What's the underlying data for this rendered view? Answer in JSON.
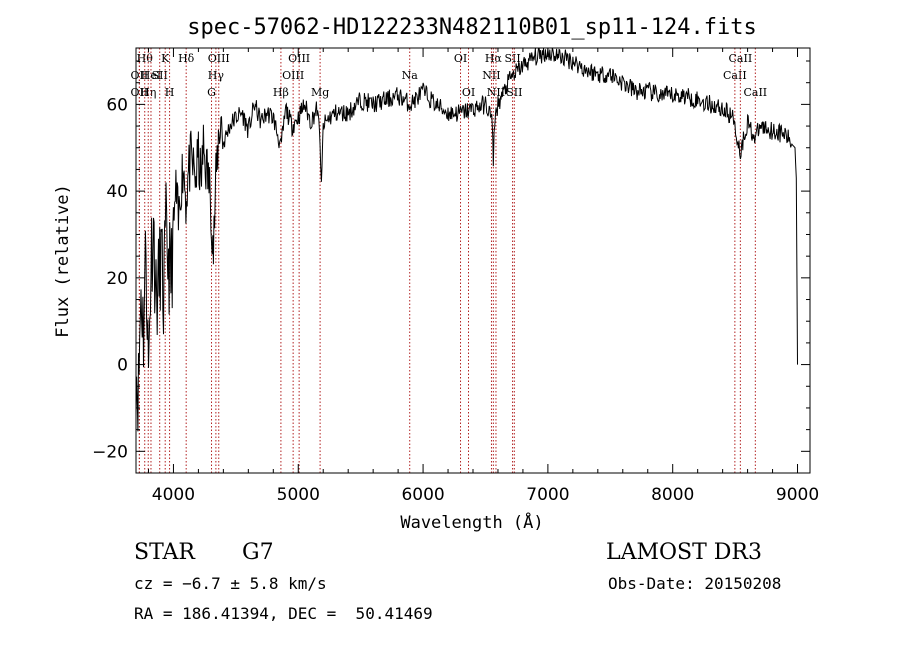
{
  "chart_data": {
    "type": "line",
    "title": "spec-57062-HD122233N482110B01_sp11-124.fits",
    "xlabel": "Wavelength (Å)",
    "ylabel": "Flux (relative)",
    "xlim": [
      3700,
      9100
    ],
    "ylim": [
      -25,
      73
    ],
    "x_ticks": [
      4000,
      5000,
      6000,
      7000,
      8000,
      9000
    ],
    "x_tick_labels": [
      "4000",
      "5000",
      "6000",
      "7000",
      "8000",
      "9000"
    ],
    "y_ticks": [
      -20,
      0,
      20,
      40,
      60
    ],
    "y_tick_labels": [
      "−20",
      "0",
      "20",
      "40",
      "60"
    ],
    "grid": false,
    "series": [
      {
        "name": "spectrum",
        "color": "#000000",
        "x": [
          3700,
          3720,
          3740,
          3760,
          3780,
          3800,
          3820,
          3840,
          3860,
          3880,
          3900,
          3920,
          3940,
          3960,
          3980,
          4000,
          4020,
          4040,
          4060,
          4080,
          4100,
          4120,
          4140,
          4160,
          4180,
          4200,
          4220,
          4240,
          4260,
          4280,
          4300,
          4320,
          4340,
          4360,
          4380,
          4400,
          4450,
          4500,
          4550,
          4600,
          4650,
          4700,
          4750,
          4800,
          4861,
          4900,
          4950,
          5000,
          5050,
          5100,
          5150,
          5175,
          5185,
          5200,
          5250,
          5300,
          5400,
          5500,
          5600,
          5700,
          5800,
          5900,
          6000,
          6100,
          6200,
          6300,
          6400,
          6500,
          6550,
          6563,
          6575,
          6600,
          6700,
          6800,
          6900,
          7000,
          7100,
          7200,
          7300,
          7400,
          7500,
          7600,
          7700,
          7800,
          7900,
          8000,
          8100,
          8200,
          8300,
          8400,
          8480,
          8498,
          8510,
          8542,
          8600,
          8662,
          8700,
          8800,
          8900,
          8950,
          8980,
          8990,
          9000
        ],
        "y": [
          0,
          -6,
          18,
          8,
          28,
          -3,
          25,
          32,
          15,
          18,
          26,
          15,
          30,
          24,
          20,
          30,
          40,
          32,
          42,
          46,
          38,
          44,
          47,
          45,
          43,
          48,
          42,
          50,
          46,
          43,
          38,
          26,
          42,
          52,
          57,
          51,
          55,
          57,
          58,
          54,
          60,
          56,
          58,
          57,
          50,
          59,
          55,
          57,
          60,
          56,
          59,
          52,
          40,
          55,
          57,
          58,
          58,
          61,
          60,
          61,
          62,
          60,
          63,
          60,
          58,
          58,
          59,
          60,
          57,
          47,
          57,
          60,
          66,
          69,
          71,
          72,
          71,
          70,
          68,
          67,
          67,
          65,
          63,
          63,
          62,
          62,
          62,
          61,
          60,
          59,
          57,
          56,
          53,
          49,
          56,
          52,
          55,
          54,
          53,
          51,
          50,
          43,
          0
        ]
      }
    ],
    "line_markers": [
      {
        "x": 3727,
        "label": "OII",
        "row": 1
      },
      {
        "x": 3727,
        "label": "OII",
        "row": 2
      },
      {
        "x": 3770,
        "label": "Hθ",
        "row": 0
      },
      {
        "x": 3798,
        "label": "Hη",
        "row": 2
      },
      {
        "x": 3820,
        "label": "HeI",
        "row": 1
      },
      {
        "x": 3890,
        "label": "SII",
        "row": 1
      },
      {
        "x": 3934,
        "label": "K",
        "row": 0
      },
      {
        "x": 3969,
        "label": "H",
        "row": 2
      },
      {
        "x": 4102,
        "label": "Hδ",
        "row": 0
      },
      {
        "x": 4305,
        "label": "G",
        "row": 2
      },
      {
        "x": 4340,
        "label": "Hγ",
        "row": 1
      },
      {
        "x": 4363,
        "label": "OIII",
        "row": 0
      },
      {
        "x": 4861,
        "label": "Hβ",
        "row": 2
      },
      {
        "x": 4959,
        "label": "OIII",
        "row": 1
      },
      {
        "x": 5007,
        "label": "OIII",
        "row": 0
      },
      {
        "x": 5175,
        "label": "Mg",
        "row": 2
      },
      {
        "x": 5893,
        "label": "Na",
        "row": 1
      },
      {
        "x": 6300,
        "label": "OI",
        "row": 0
      },
      {
        "x": 6364,
        "label": "OI",
        "row": 2
      },
      {
        "x": 6548,
        "label": "NII",
        "row": 1
      },
      {
        "x": 6563,
        "label": "Hα",
        "row": 0
      },
      {
        "x": 6584,
        "label": "NII",
        "row": 2
      },
      {
        "x": 6717,
        "label": "SII",
        "row": 0
      },
      {
        "x": 6731,
        "label": "SII",
        "row": 2
      },
      {
        "x": 8498,
        "label": "CaII",
        "row": 1
      },
      {
        "x": 8542,
        "label": "CaII",
        "row": 0
      },
      {
        "x": 8662,
        "label": "CaII",
        "row": 2
      }
    ]
  },
  "info": {
    "object_class": "STAR",
    "subclass": "G7",
    "survey": "LAMOST DR3",
    "cz": "cz = −6.7 ± 5.8 km/s",
    "obs_date": "Obs-Date: 20150208",
    "coords": "RA = 186.41394, DEC =  50.41469"
  }
}
